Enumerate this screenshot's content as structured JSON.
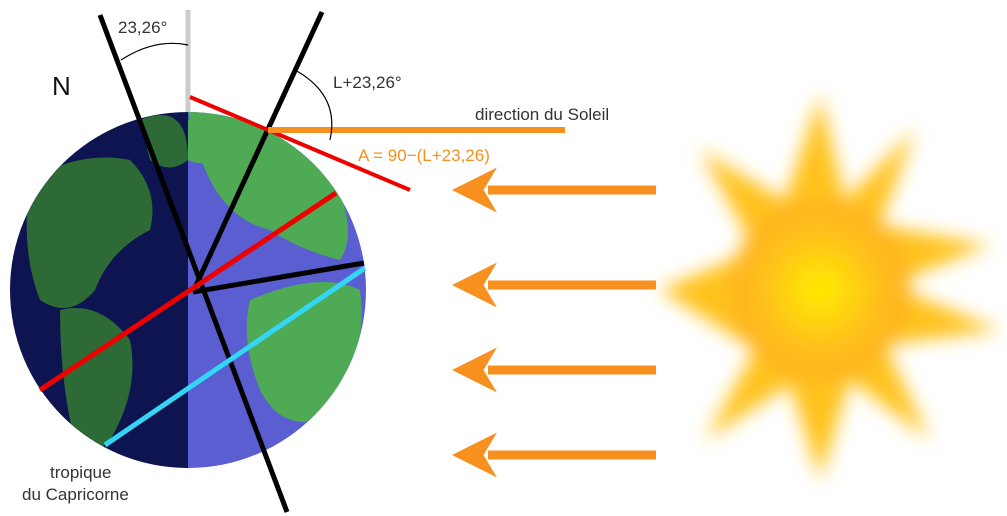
{
  "labels": {
    "tilt_angle": "23,26°",
    "north": "N",
    "sun_angle": "L+23,26°",
    "sun_direction": "direction du Soleil",
    "formula": "A = 90−(L+23,26)",
    "tropic": [
      "tropique",
      "du Capricorne"
    ]
  }
}
